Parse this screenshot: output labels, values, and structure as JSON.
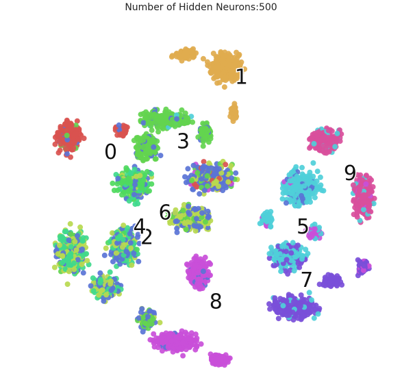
{
  "chart_data": {
    "type": "scatter",
    "title": "Number of Hidden Neurons:500",
    "xlabel": "",
    "ylabel": "",
    "axes_visible": false,
    "grid": false,
    "legend": "none",
    "xlim": [
      0,
      100
    ],
    "ylim": [
      0,
      100
    ],
    "series": [
      {
        "name": "0",
        "color": "#d9534f",
        "label_at": [
          22,
          63
        ]
      },
      {
        "name": "1",
        "color": "#e0ab4e",
        "label_at": [
          58,
          84
        ]
      },
      {
        "name": "2",
        "color": "#5a74d6",
        "label_at": [
          32,
          39
        ]
      },
      {
        "name": "3",
        "color": "#63d44f",
        "label_at": [
          42,
          66
        ]
      },
      {
        "name": "4",
        "color": "#3fd98c",
        "label_at": [
          30,
          42
        ]
      },
      {
        "name": "5",
        "color": "#4fcfd9",
        "label_at": [
          75,
          42
        ]
      },
      {
        "name": "6",
        "color": "#4fd95e",
        "label_at": [
          37,
          46
        ]
      },
      {
        "name": "7",
        "color": "#7a4fd9",
        "label_at": [
          76,
          27
        ]
      },
      {
        "name": "8",
        "color": "#c94fd9",
        "label_at": [
          51,
          21
        ]
      },
      {
        "name": "9",
        "color": "#d94f9c",
        "label_at": [
          88,
          57
        ]
      },
      {
        "name": "",
        "color": "#b9d94f"
      }
    ]
  }
}
